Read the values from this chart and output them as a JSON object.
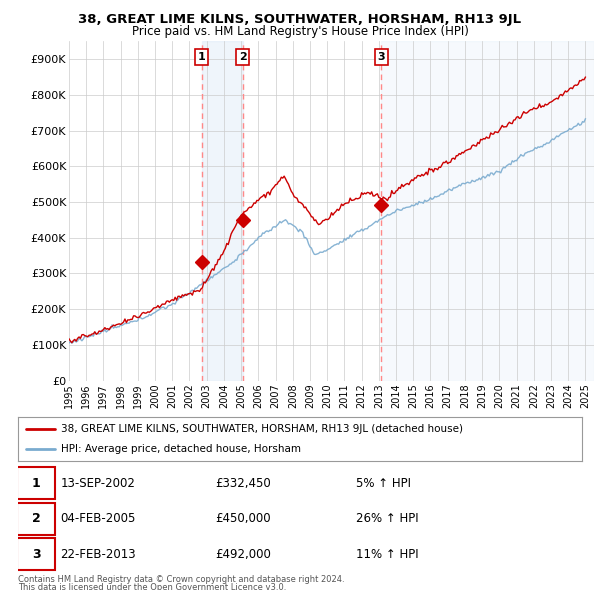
{
  "title": "38, GREAT LIME KILNS, SOUTHWATER, HORSHAM, RH13 9JL",
  "subtitle": "Price paid vs. HM Land Registry's House Price Index (HPI)",
  "ylim": [
    0,
    950000
  ],
  "yticks": [
    0,
    100000,
    200000,
    300000,
    400000,
    500000,
    600000,
    700000,
    800000,
    900000
  ],
  "ytick_labels": [
    "£0",
    "£100K",
    "£200K",
    "£300K",
    "£400K",
    "£500K",
    "£600K",
    "£700K",
    "£800K",
    "£900K"
  ],
  "xlim_start": 1995.0,
  "xlim_end": 2025.5,
  "xtick_years": [
    1995,
    1996,
    1997,
    1998,
    1999,
    2000,
    2001,
    2002,
    2003,
    2004,
    2005,
    2006,
    2007,
    2008,
    2009,
    2010,
    2011,
    2012,
    2013,
    2014,
    2015,
    2016,
    2017,
    2018,
    2019,
    2020,
    2021,
    2022,
    2023,
    2024,
    2025
  ],
  "sale1_x": 2002.71,
  "sale1_y": 332450,
  "sale1_label": "1",
  "sale2_x": 2005.09,
  "sale2_y": 450000,
  "sale2_label": "2",
  "sale3_x": 2013.14,
  "sale3_y": 492000,
  "sale3_label": "3",
  "sale_color": "#cc0000",
  "hpi_color": "#7aabcf",
  "shade_color": "#ddeeff",
  "grid_color": "#cccccc",
  "vline_color": "#ff8888",
  "legend_label_red": "38, GREAT LIME KILNS, SOUTHWATER, HORSHAM, RH13 9JL (detached house)",
  "legend_label_blue": "HPI: Average price, detached house, Horsham",
  "table_entries": [
    {
      "num": "1",
      "date": "13-SEP-2002",
      "price": "£332,450",
      "hpi": "5% ↑ HPI"
    },
    {
      "num": "2",
      "date": "04-FEB-2005",
      "price": "£450,000",
      "hpi": "26% ↑ HPI"
    },
    {
      "num": "3",
      "date": "22-FEB-2013",
      "price": "£492,000",
      "hpi": "11% ↑ HPI"
    }
  ],
  "footer1": "Contains HM Land Registry data © Crown copyright and database right 2024.",
  "footer2": "This data is licensed under the Open Government Licence v3.0.",
  "background_color": "#ffffff"
}
